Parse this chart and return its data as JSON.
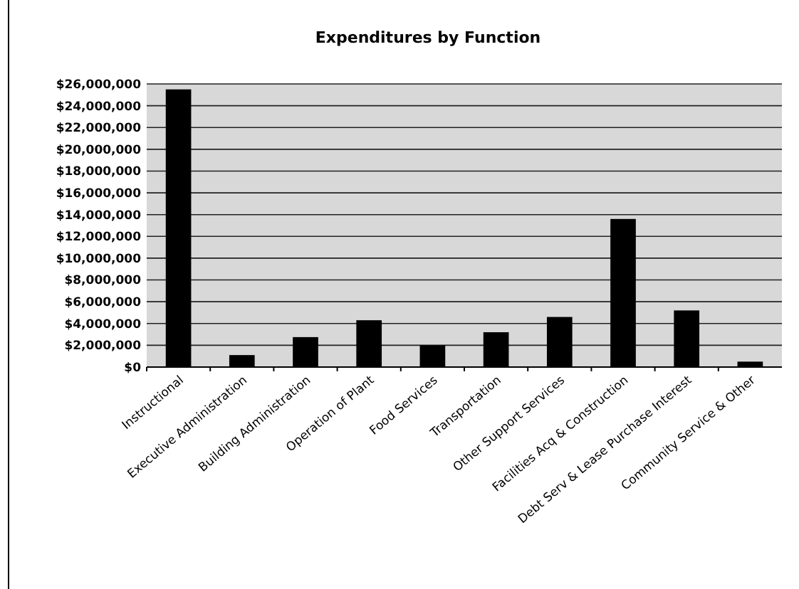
{
  "chart_data": {
    "type": "bar",
    "title": "Expenditures by Function",
    "categories": [
      "Instructional",
      "Executive Administration",
      "Building Administration",
      "Operation of Plant",
      "Food Services",
      "Transportation",
      "Other Support Services",
      "Facilities Acq & Construction",
      "Debt Serv & Lease Purchase Interest",
      "Community Service & Other"
    ],
    "values": [
      25500000,
      1100000,
      2750000,
      4300000,
      2000000,
      3200000,
      4600000,
      13600000,
      5200000,
      500000
    ],
    "color": "#000000",
    "ylim": [
      0,
      26000000
    ],
    "yticks": [
      {
        "value": 0,
        "label": "$0"
      },
      {
        "value": 2000000,
        "label": "$2,000,000"
      },
      {
        "value": 4000000,
        "label": "$4,000,000"
      },
      {
        "value": 6000000,
        "label": "$6,000,000"
      },
      {
        "value": 8000000,
        "label": "$8,000,000"
      },
      {
        "value": 10000000,
        "label": "$10,000,000"
      },
      {
        "value": 12000000,
        "label": "$12,000,000"
      },
      {
        "value": 14000000,
        "label": "$14,000,000"
      },
      {
        "value": 16000000,
        "label": "$16,000,000"
      },
      {
        "value": 18000000,
        "label": "$18,000,000"
      },
      {
        "value": 20000000,
        "label": "$20,000,000"
      },
      {
        "value": 22000000,
        "label": "$22,000,000"
      },
      {
        "value": 24000000,
        "label": "$24,000,000"
      },
      {
        "value": 26000000,
        "label": "$26,000,000"
      }
    ],
    "grid": "y"
  }
}
